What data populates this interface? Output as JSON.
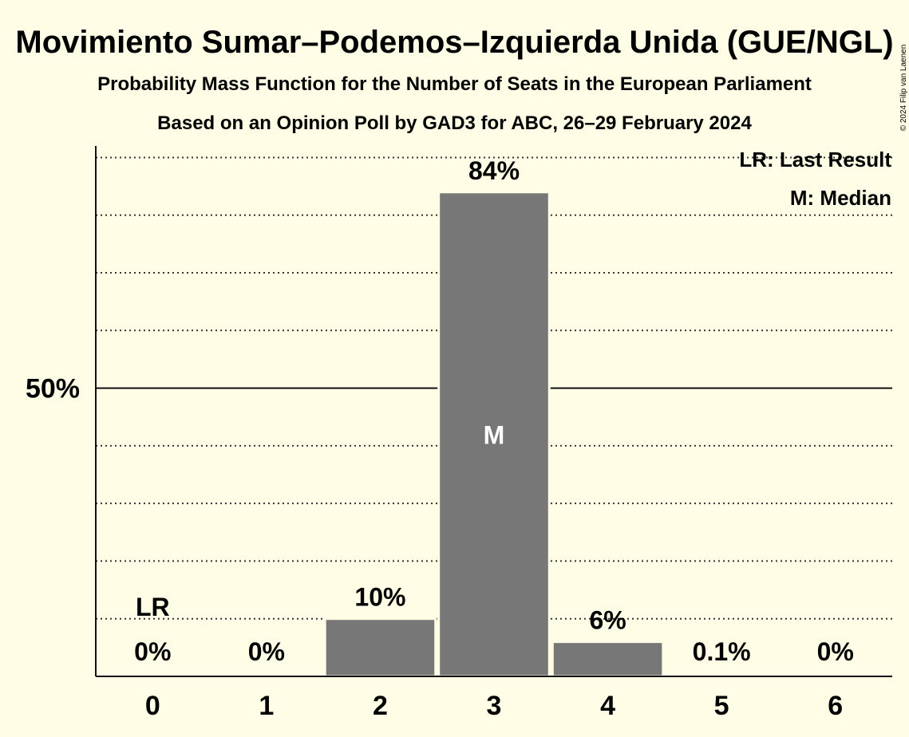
{
  "chart_data": {
    "type": "bar",
    "title": "Movimiento Sumar–Podemos–Izquierda Unida (GUE/NGL)",
    "subtitle": "Probability Mass Function for the Number of Seats in the European Parliament",
    "subtitle2": "Based on an Opinion Poll by GAD3 for ABC, 26–29 February 2024",
    "categories": [
      "0",
      "1",
      "2",
      "3",
      "4",
      "5",
      "6"
    ],
    "values": [
      0,
      0,
      10,
      84,
      6,
      0.1,
      0
    ],
    "value_labels": [
      "0%",
      "0%",
      "10%",
      "84%",
      "6%",
      "0.1%",
      "0%"
    ],
    "ylim": [
      0,
      92
    ],
    "y_ticks": [
      {
        "value": 50,
        "label": "50%"
      }
    ],
    "grid": "dotted every 10%, solid at 50%",
    "bar_color": "#777777",
    "background_color": "#fffde5",
    "annotations": {
      "last_result": {
        "category": "0",
        "text": "LR"
      },
      "median": {
        "category": "3",
        "text": "M"
      }
    },
    "legend": {
      "placement": "top-right",
      "entries": [
        "LR: Last Result",
        "M: Median"
      ]
    },
    "copyright": "© 2024 Filip van Laenen"
  }
}
